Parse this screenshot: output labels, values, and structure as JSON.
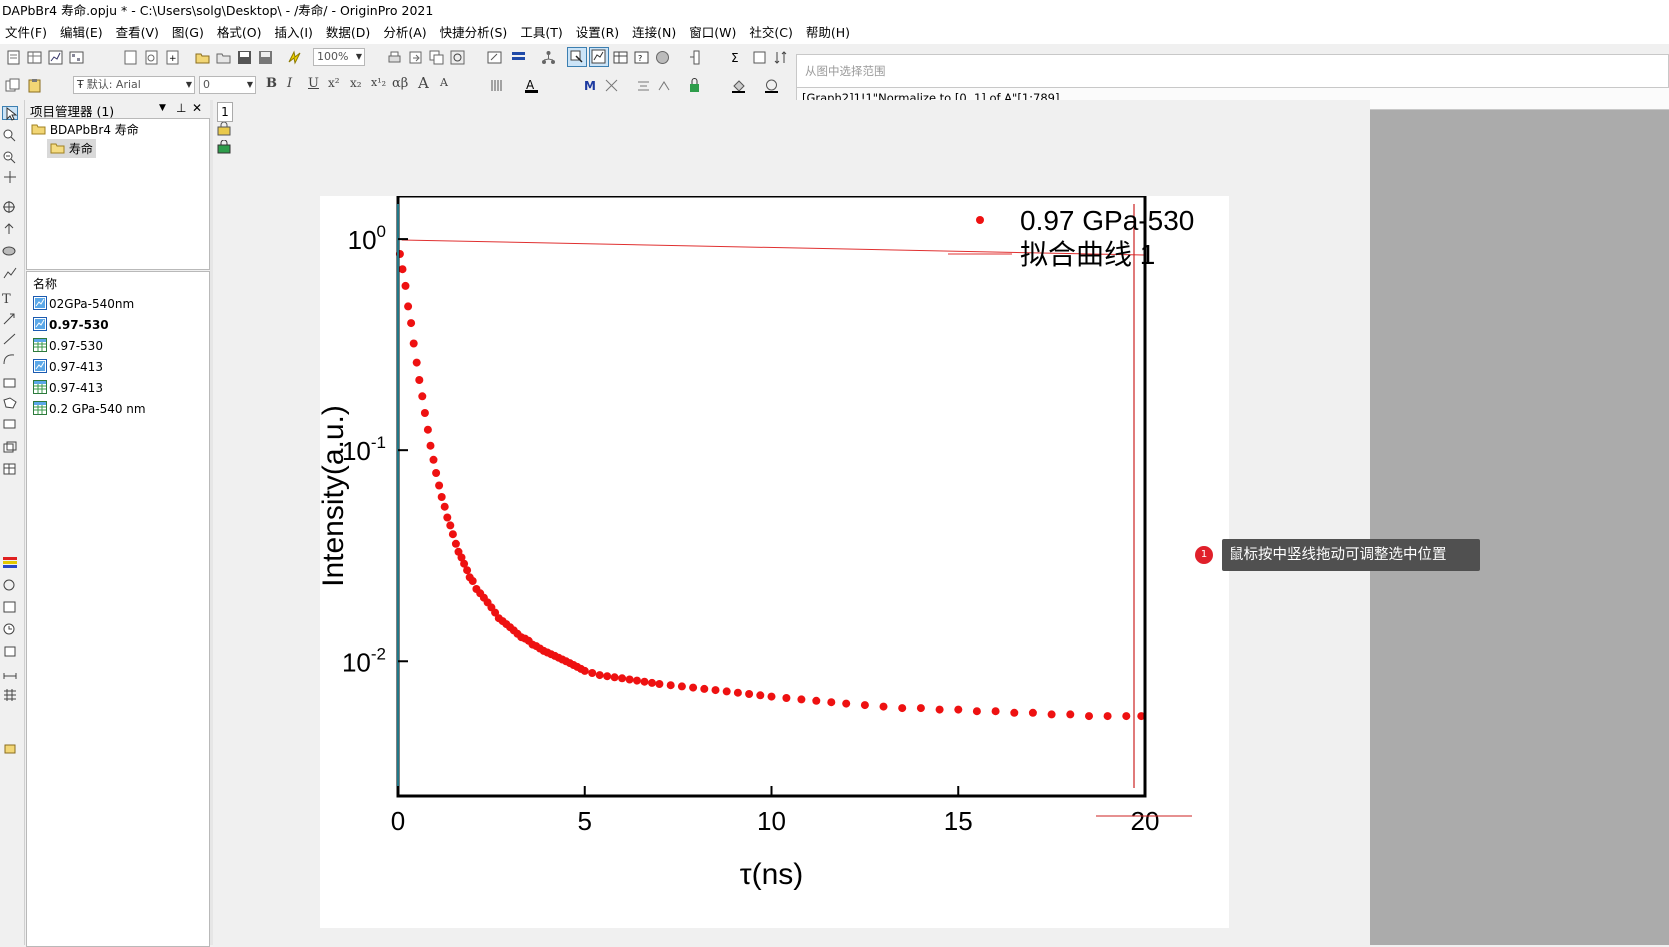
{
  "window": {
    "title": "DAPbBr4 寿命.opju * - C:\\Users\\solg\\Desktop\\ - /寿命/ - OriginPro 2021"
  },
  "menu": [
    "文件(F)",
    "编辑(E)",
    "查看(V)",
    "图(G)",
    "格式(O)",
    "插入(I)",
    "数据(D)",
    "分析(A)",
    "快捷分析(S)",
    "工具(T)",
    "设置(R)",
    "连接(N)",
    "窗口(W)",
    "社交(C)",
    "帮助(H)"
  ],
  "toolbar": {
    "zoom": "100%",
    "font_name": "默认: Arial",
    "font_size": "0",
    "format_glyphs": [
      "B",
      "I",
      "U",
      "x²",
      "x₂",
      "x¹₂",
      "αβ",
      "A",
      "A"
    ]
  },
  "range_popup": {
    "hint": "从图中选择范围",
    "value": "[Graph2]1!1\"Normalize to [0, 1] of A\"[1:789]"
  },
  "project_manager": {
    "title": "项目管理器 (1)",
    "tree": {
      "root": "BDAPbBr4 寿命",
      "folder": "寿命"
    },
    "list_header": "名称",
    "items": [
      {
        "name": "02GPa-540nm",
        "type": "graph",
        "bold": false
      },
      {
        "name": "0.97-530",
        "type": "graph",
        "bold": true
      },
      {
        "name": "0.97-530",
        "type": "book",
        "bold": false
      },
      {
        "name": "0.97-413",
        "type": "graph",
        "bold": false
      },
      {
        "name": "0.97-413",
        "type": "book",
        "bold": false
      },
      {
        "name": "0.2 GPa-540 nm",
        "type": "book",
        "bold": false
      }
    ]
  },
  "page_tab": "1",
  "tooltip": {
    "marker": "1",
    "text": "鼠标按中竖线拖动可调整选中位置"
  },
  "colors": {
    "points": "#ee1111",
    "fit_line": "#e03030",
    "axis": "#000000",
    "cursor_line": "#cc2222",
    "left_line": "#2a9fb5"
  },
  "chart_data": {
    "type": "scatter",
    "xlabel": "τ(ns)",
    "ylabel": "Intensity(a.u.)",
    "xlim": [
      0,
      20
    ],
    "ylim": [
      0.0023,
      1.6
    ],
    "yscale": "log",
    "xticks": [
      0,
      5,
      10,
      15,
      20
    ],
    "yticks": [
      {
        "value": 1,
        "base": "10",
        "exp": "0"
      },
      {
        "value": 0.1,
        "base": "10",
        "exp": "-1"
      },
      {
        "value": 0.01,
        "base": "10",
        "exp": "-2"
      }
    ],
    "legend_position": "top-right",
    "series": [
      {
        "name": "0.97 GPa-530",
        "kind": "scatter",
        "x": [
          0.05,
          0.12,
          0.2,
          0.27,
          0.35,
          0.42,
          0.5,
          0.57,
          0.65,
          0.72,
          0.8,
          0.87,
          0.95,
          1.02,
          1.1,
          1.17,
          1.25,
          1.32,
          1.4,
          1.47,
          1.55,
          1.62,
          1.7,
          1.77,
          1.85,
          1.92,
          2.0,
          2.1,
          2.2,
          2.3,
          2.4,
          2.5,
          2.6,
          2.7,
          2.8,
          2.9,
          3.0,
          3.1,
          3.2,
          3.3,
          3.4,
          3.5,
          3.6,
          3.7,
          3.8,
          3.9,
          4.0,
          4.1,
          4.2,
          4.3,
          4.4,
          4.5,
          4.6,
          4.7,
          4.8,
          4.9,
          5.0,
          5.2,
          5.4,
          5.6,
          5.8,
          6.0,
          6.2,
          6.4,
          6.6,
          6.8,
          7.0,
          7.3,
          7.6,
          7.9,
          8.2,
          8.5,
          8.8,
          9.1,
          9.4,
          9.7,
          10.0,
          10.4,
          10.8,
          11.2,
          11.6,
          12.0,
          12.5,
          13.0,
          13.5,
          14.0,
          14.5,
          15.0,
          15.5,
          16.0,
          16.5,
          17.0,
          17.5,
          18.0,
          18.5,
          19.0,
          19.5,
          19.9
        ],
        "y": [
          0.85,
          0.72,
          0.6,
          0.48,
          0.4,
          0.32,
          0.26,
          0.215,
          0.18,
          0.15,
          0.125,
          0.105,
          0.09,
          0.078,
          0.068,
          0.06,
          0.054,
          0.048,
          0.044,
          0.04,
          0.036,
          0.033,
          0.031,
          0.029,
          0.027,
          0.025,
          0.024,
          0.022,
          0.021,
          0.02,
          0.019,
          0.018,
          0.017,
          0.016,
          0.0155,
          0.015,
          0.0145,
          0.014,
          0.0135,
          0.013,
          0.0128,
          0.0125,
          0.012,
          0.0118,
          0.0115,
          0.0112,
          0.011,
          0.0108,
          0.0106,
          0.0104,
          0.0102,
          0.01,
          0.0098,
          0.0096,
          0.0094,
          0.0092,
          0.009,
          0.0088,
          0.0086,
          0.0085,
          0.0084,
          0.0083,
          0.0082,
          0.0081,
          0.008,
          0.0079,
          0.0078,
          0.0077,
          0.0076,
          0.0075,
          0.0074,
          0.0073,
          0.0072,
          0.0071,
          0.007,
          0.0069,
          0.0068,
          0.0067,
          0.0066,
          0.0065,
          0.0064,
          0.0063,
          0.0062,
          0.0061,
          0.006,
          0.006,
          0.0059,
          0.0059,
          0.0058,
          0.0058,
          0.0057,
          0.0057,
          0.0056,
          0.0056,
          0.0055,
          0.0055,
          0.0055,
          0.0055
        ]
      },
      {
        "name": "拟合曲线 1",
        "kind": "line",
        "x": [
          0.1,
          20
        ],
        "y": [
          0.99,
          0.84
        ]
      }
    ]
  }
}
